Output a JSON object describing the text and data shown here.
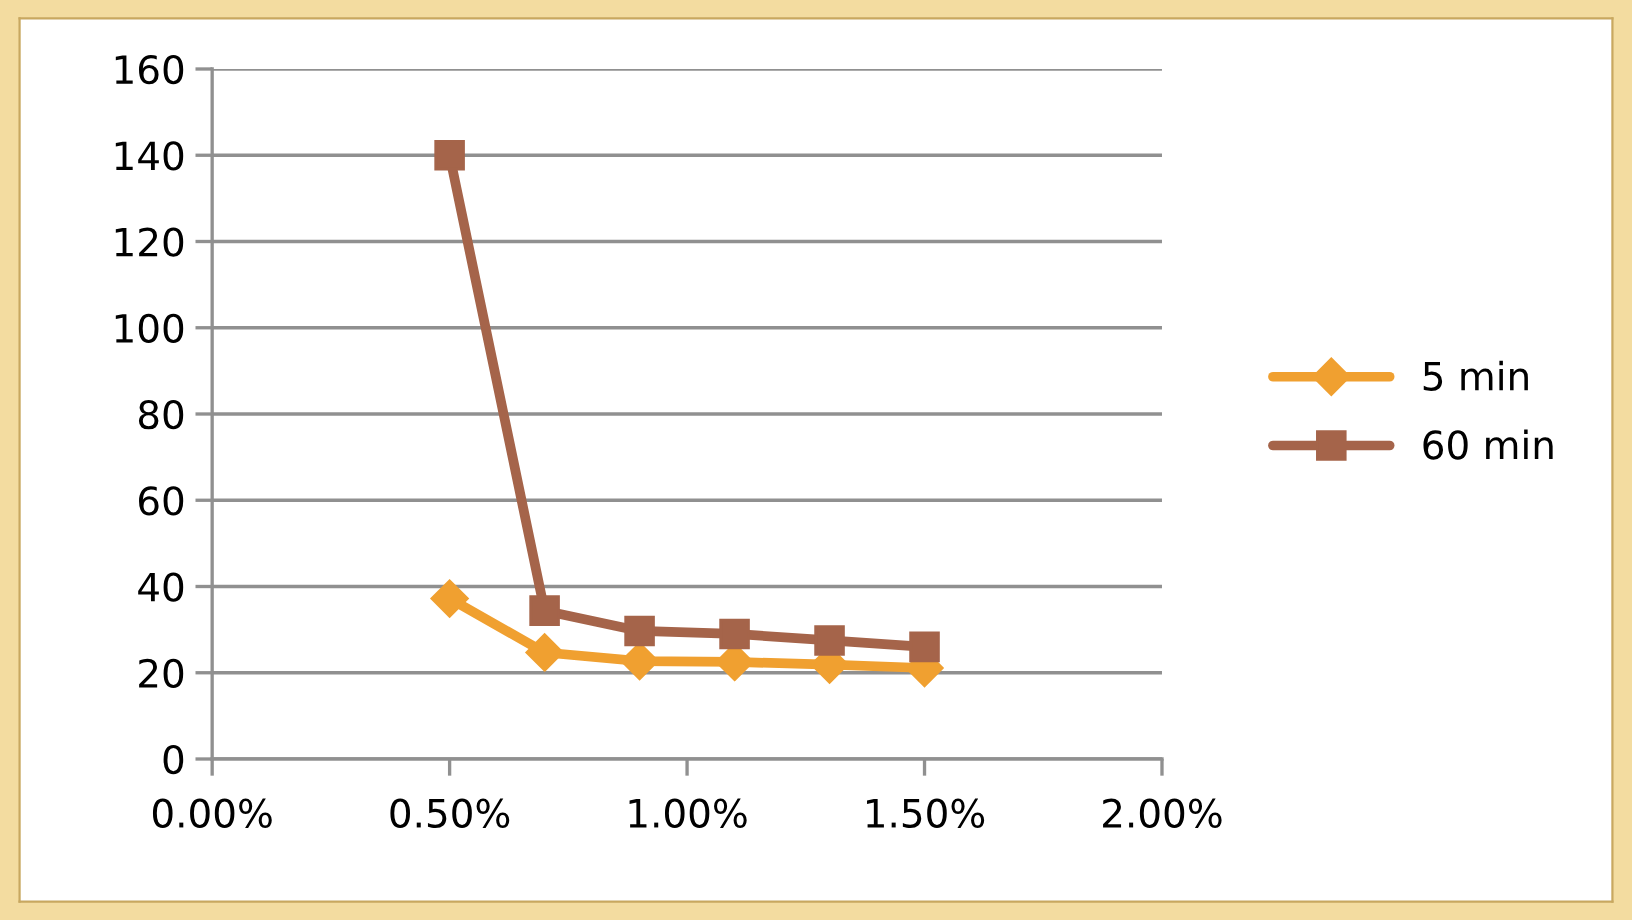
{
  "chart_data": {
    "type": "line",
    "x": [
      0.5,
      0.7,
      0.9,
      1.1,
      1.3,
      1.5
    ],
    "series": [
      {
        "name": "5 min",
        "color": "#f0a030",
        "marker": "diamond",
        "values": [
          37.2,
          24.7,
          22.7,
          22.5,
          21.9,
          21.1
        ]
      },
      {
        "name": "60 min",
        "color": "#a5644a",
        "marker": "square",
        "values": [
          140,
          34.4,
          29.7,
          29,
          27.5,
          26
        ]
      }
    ],
    "xlim": [
      0,
      2
    ],
    "xticks": [
      {
        "value": 0,
        "label": "0.00%"
      },
      {
        "value": 0.5,
        "label": "0.50%"
      },
      {
        "value": 1,
        "label": "1.00%"
      },
      {
        "value": 1.5,
        "label": "1.50%"
      },
      {
        "value": 2,
        "label": "2.00%"
      }
    ],
    "ylim": [
      0,
      160
    ],
    "yticks": [
      0,
      20,
      40,
      60,
      80,
      100,
      120,
      140,
      160
    ],
    "grid": "y",
    "legend": "right",
    "line_style": "solid"
  }
}
